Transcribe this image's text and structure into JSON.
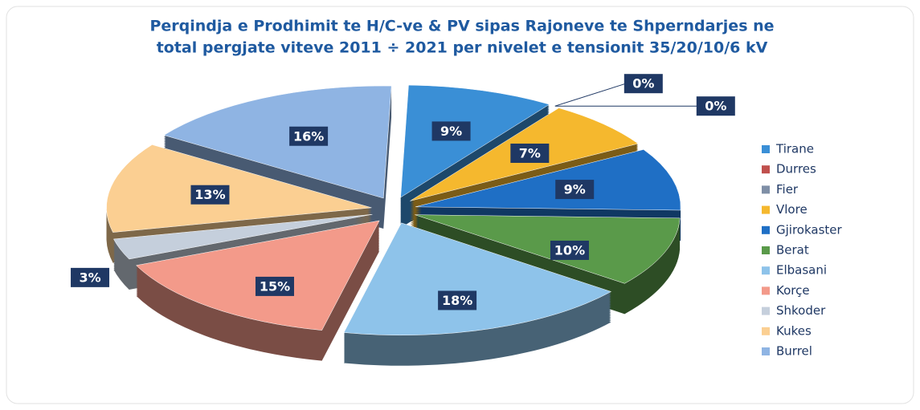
{
  "chart_data": {
    "type": "pie",
    "title": [
      "Perqindja e Prodhimit te H/C-ve & PV sipas Rajoneve te Shperndarjes ne",
      "total pergjate viteve 2011 ÷ 2021 per nivelet e tensionit 35/20/10/6 kV"
    ],
    "categories": [
      "Tirane",
      "Durres",
      "Fier",
      "Vlore",
      "Gjirokaster",
      "Berat",
      "Elbasani",
      "Korçe",
      "Shkoder",
      "Kukes",
      "Burrel"
    ],
    "values": [
      9,
      0,
      0,
      7,
      9,
      10,
      18,
      15,
      3,
      13,
      16
    ],
    "value_labels": [
      "9%",
      "0%",
      "0%",
      "7%",
      "9%",
      "10%",
      "18%",
      "15%",
      "3%",
      "13%",
      "16%"
    ],
    "colors": [
      "#3a8fd6",
      "#c0504d",
      "#7f8fa6",
      "#f5b82e",
      "#1f6fc5",
      "#5a9a4a",
      "#8ec3ea",
      "#f39a8a",
      "#c5cfdc",
      "#fbcf92",
      "#8fb4e3"
    ],
    "legend": "right"
  }
}
